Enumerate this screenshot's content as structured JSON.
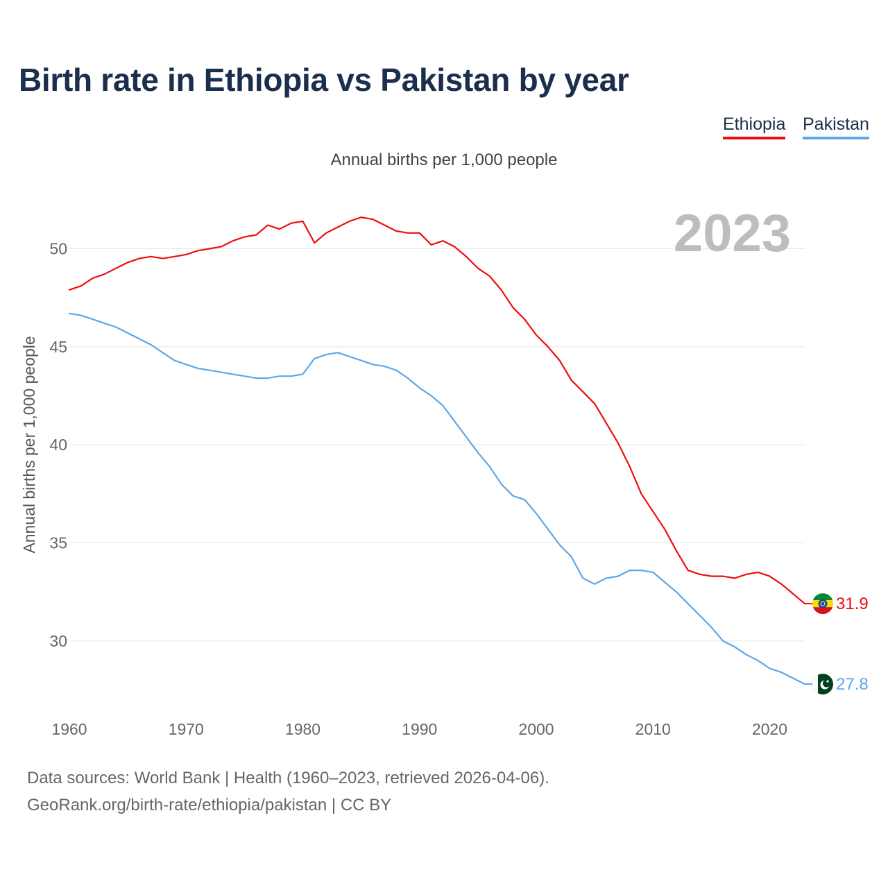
{
  "title": "Birth rate in Ethiopia vs Pakistan by year",
  "legend": [
    "Ethiopia",
    "Pakistan"
  ],
  "footer": {
    "sources": "Data sources: World Bank | Health (1960–2023, retrieved 2026-04-06).",
    "credit": "GeoRank.org/birth-rate/ethiopia/pakistan | CC BY"
  },
  "chart_data": {
    "type": "line",
    "title": "Annual births per 1,000 people",
    "ylabel": "Annual births per 1,000 people",
    "xlabel": "",
    "year_label": "2023",
    "xlim": [
      1960,
      2023
    ],
    "ylim": [
      26.6,
      53.2
    ],
    "yticks": [
      30,
      35,
      40,
      45,
      50
    ],
    "xticks": [
      1960,
      1970,
      1980,
      1990,
      2000,
      2010,
      2020
    ],
    "grid": true,
    "x": [
      1960,
      1961,
      1962,
      1963,
      1964,
      1965,
      1966,
      1967,
      1968,
      1969,
      1970,
      1971,
      1972,
      1973,
      1974,
      1975,
      1976,
      1977,
      1978,
      1979,
      1980,
      1981,
      1982,
      1983,
      1984,
      1985,
      1986,
      1987,
      1988,
      1989,
      1990,
      1991,
      1992,
      1993,
      1994,
      1995,
      1996,
      1997,
      1998,
      1999,
      2000,
      2001,
      2002,
      2003,
      2004,
      2005,
      2006,
      2007,
      2008,
      2009,
      2010,
      2011,
      2012,
      2013,
      2014,
      2015,
      2016,
      2017,
      2018,
      2019,
      2020,
      2021,
      2022,
      2023
    ],
    "series": [
      {
        "name": "Ethiopia",
        "color": "#ee0d0d",
        "end_label": "31.9",
        "values": [
          47.9,
          48.1,
          48.5,
          48.7,
          49.0,
          49.3,
          49.5,
          49.6,
          49.5,
          49.6,
          49.7,
          49.9,
          50.0,
          50.1,
          50.4,
          50.6,
          50.7,
          51.2,
          51.0,
          51.3,
          51.4,
          50.3,
          50.8,
          51.1,
          51.4,
          51.6,
          51.5,
          51.2,
          50.9,
          50.8,
          50.8,
          50.2,
          50.4,
          50.1,
          49.6,
          49.0,
          48.6,
          47.9,
          47.0,
          46.4,
          45.6,
          45.0,
          44.3,
          43.3,
          42.7,
          42.1,
          41.1,
          40.1,
          38.9,
          37.5,
          36.6,
          35.7,
          34.6,
          33.6,
          33.4,
          33.3,
          33.3,
          33.2,
          33.4,
          33.5,
          33.3,
          32.9,
          32.4,
          31.9
        ]
      },
      {
        "name": "Pakistan",
        "color": "#5ca7e8",
        "end_label": "27.8",
        "values": [
          46.7,
          46.6,
          46.4,
          46.2,
          46.0,
          45.7,
          45.4,
          45.1,
          44.7,
          44.3,
          44.1,
          43.9,
          43.8,
          43.7,
          43.6,
          43.5,
          43.4,
          43.4,
          43.5,
          43.5,
          43.6,
          44.4,
          44.6,
          44.7,
          44.5,
          44.3,
          44.1,
          44.0,
          43.8,
          43.4,
          42.9,
          42.5,
          42.0,
          41.2,
          40.4,
          39.6,
          38.9,
          38.0,
          37.4,
          37.2,
          36.5,
          35.7,
          34.9,
          34.3,
          33.2,
          32.9,
          33.2,
          33.3,
          33.6,
          33.6,
          33.5,
          33.0,
          32.5,
          31.9,
          31.3,
          30.7,
          30.0,
          29.7,
          29.3,
          29.0,
          28.6,
          28.4,
          28.1,
          27.8
        ]
      }
    ]
  }
}
